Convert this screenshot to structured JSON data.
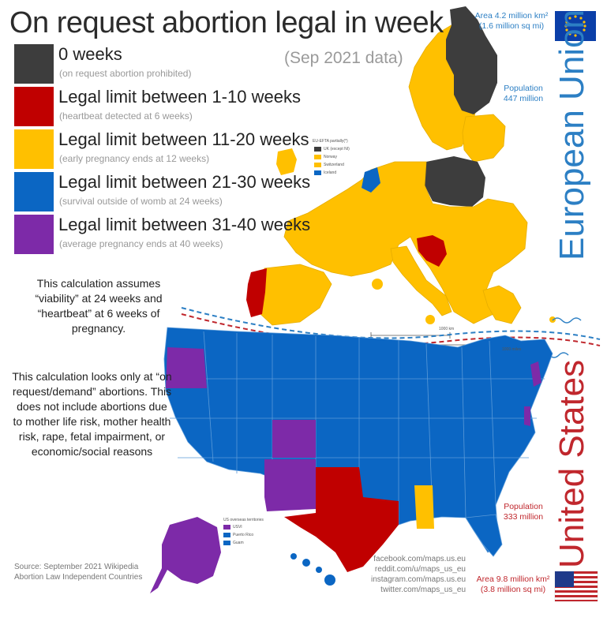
{
  "title": "On request abortion legal in week",
  "subtitle": "(Sep 2021 data)",
  "colors": {
    "zero": "#3d3d3d",
    "limit_1_10": "#c00000",
    "limit_11_20": "#ffc000",
    "limit_21_30": "#0b66c3",
    "limit_31_40": "#7d2aa8",
    "eu_accent": "#2c7fc4",
    "us_accent": "#c0272d"
  },
  "legend": [
    {
      "label": "0 weeks",
      "note": "(on request abortion prohibited)",
      "color": "#3d3d3d"
    },
    {
      "label": "Legal limit between 1-10 weeks",
      "note": "(heartbeat detected at 6 weeks)",
      "color": "#c00000"
    },
    {
      "label": "Legal limit between 11-20 weeks",
      "note": "(early pregnancy ends at 12 weeks)",
      "color": "#ffc000"
    },
    {
      "label": "Legal limit between 21-30 weeks",
      "note": "(survival outside of womb at 24 weeks)",
      "color": "#0b66c3"
    },
    {
      "label": "Legal limit between 31-40 weeks",
      "note": "(average pregnancy ends at 40 weeks)",
      "color": "#7d2aa8"
    }
  ],
  "notes": {
    "assumption": "This calculation assumes “viability” at 24 weeks and “heartbeat” at 6 weeks of pregnancy.",
    "scope": "This calculation looks only at “on request/demand” abortions. This does not include abortions due to mother life risk, mother health risk, rape, fetal impairment, or economic/social reasons"
  },
  "eu": {
    "name": "European Union",
    "area_line1": "Area 4.2 million km²",
    "area_line2": "(1.6 million sq mi)",
    "population_label": "Population",
    "population_value": "447 million",
    "inset_title": "EU-EFTA partially(*)",
    "inset_items": [
      "UK (except NI)",
      "Norway",
      "Switzerland",
      "Iceland"
    ],
    "scale_km": "1000 km",
    "scale_mi": "1000 miles",
    "zero_weeks": [
      "Finland",
      "Poland"
    ],
    "limit_1_10": [
      "Portugal",
      "Croatia"
    ],
    "limit_21_30": [
      "Netherlands"
    ]
  },
  "us": {
    "name": "United States",
    "area_line1": "Area 9.8 million km²",
    "area_line2": "(3.8 million sq mi)",
    "population_label": "Population",
    "population_value": "333 million",
    "inset_title": "US overseas territories",
    "inset_items": [
      "USVI",
      "Puerto Rico",
      "Guam"
    ],
    "limit_1_10": [
      "Texas"
    ],
    "limit_11_20": [
      "Mississippi"
    ],
    "limit_31_40": [
      "Oregon",
      "Colorado",
      "New Mexico",
      "Alaska",
      "Vermont",
      "New Jersey"
    ]
  },
  "source": {
    "line1": "Source: September 2021 Wikipedia",
    "line2": "Abortion Law Independent Countries"
  },
  "social": [
    "facebook.com/maps.us.eu",
    "reddit.com/u/maps_us_eu",
    "instagram.com/maps.us.eu",
    "twitter.com/maps_us_eu"
  ]
}
